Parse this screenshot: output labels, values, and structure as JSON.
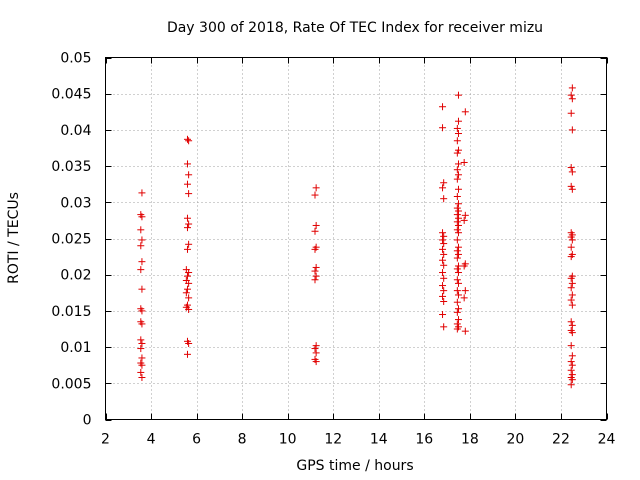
{
  "chart_data": {
    "type": "scatter",
    "title": "Day 300 of 2018, Rate Of TEC Index for receiver mizu",
    "xlabel": "GPS time / hours",
    "ylabel": "ROTI / TECUs",
    "xlim": [
      2,
      24
    ],
    "ylim": [
      0,
      0.05
    ],
    "xticks": [
      2,
      4,
      6,
      8,
      10,
      12,
      14,
      16,
      18,
      20,
      22,
      24
    ],
    "yticks": [
      0,
      0.005,
      0.01,
      0.015,
      0.02,
      0.025,
      0.03,
      0.035,
      0.04,
      0.045,
      0.05
    ],
    "xtick_labels": [
      "2",
      "4",
      "6",
      "8",
      "10",
      "12",
      "14",
      "16",
      "18",
      "20",
      "22",
      "24"
    ],
    "ytick_labels": [
      "0",
      "0.005",
      "0.01",
      "0.015",
      "0.02",
      "0.025",
      "0.03",
      "0.035",
      "0.04",
      "0.045",
      "0.05"
    ],
    "grid": true,
    "marker": "+",
    "color": "#e00000",
    "series": [
      {
        "name": "ROTI",
        "points": [
          [
            3.6,
            0.0313
          ],
          [
            3.55,
            0.0283
          ],
          [
            3.6,
            0.028
          ],
          [
            3.55,
            0.0262
          ],
          [
            3.6,
            0.0248
          ],
          [
            3.55,
            0.024
          ],
          [
            3.6,
            0.0218
          ],
          [
            3.55,
            0.0207
          ],
          [
            3.6,
            0.018
          ],
          [
            3.55,
            0.0153
          ],
          [
            3.6,
            0.015
          ],
          [
            3.55,
            0.0135
          ],
          [
            3.6,
            0.0132
          ],
          [
            3.55,
            0.011
          ],
          [
            3.6,
            0.0105
          ],
          [
            3.55,
            0.0098
          ],
          [
            3.6,
            0.0085
          ],
          [
            3.55,
            0.0078
          ],
          [
            3.6,
            0.0075
          ],
          [
            3.55,
            0.0065
          ],
          [
            3.6,
            0.0058
          ],
          [
            5.6,
            0.0387
          ],
          [
            5.65,
            0.0385
          ],
          [
            5.6,
            0.0353
          ],
          [
            5.65,
            0.0338
          ],
          [
            5.6,
            0.0325
          ],
          [
            5.65,
            0.0312
          ],
          [
            5.6,
            0.0278
          ],
          [
            5.65,
            0.027
          ],
          [
            5.6,
            0.0265
          ],
          [
            5.65,
            0.0242
          ],
          [
            5.6,
            0.0235
          ],
          [
            5.55,
            0.0207
          ],
          [
            5.65,
            0.0203
          ],
          [
            5.6,
            0.0198
          ],
          [
            5.55,
            0.0192
          ],
          [
            5.65,
            0.0188
          ],
          [
            5.6,
            0.018
          ],
          [
            5.55,
            0.0175
          ],
          [
            5.65,
            0.0168
          ],
          [
            5.6,
            0.0158
          ],
          [
            5.55,
            0.0155
          ],
          [
            5.65,
            0.0152
          ],
          [
            5.6,
            0.0108
          ],
          [
            5.65,
            0.0105
          ],
          [
            5.6,
            0.009
          ],
          [
            11.25,
            0.032
          ],
          [
            11.2,
            0.031
          ],
          [
            11.25,
            0.0268
          ],
          [
            11.2,
            0.026
          ],
          [
            11.25,
            0.0238
          ],
          [
            11.2,
            0.0235
          ],
          [
            11.25,
            0.021
          ],
          [
            11.2,
            0.0205
          ],
          [
            11.25,
            0.0198
          ],
          [
            11.2,
            0.0193
          ],
          [
            11.25,
            0.0102
          ],
          [
            11.2,
            0.0098
          ],
          [
            11.25,
            0.0092
          ],
          [
            11.2,
            0.0083
          ],
          [
            11.25,
            0.008
          ],
          [
            16.8,
            0.0432
          ],
          [
            16.8,
            0.0403
          ],
          [
            16.85,
            0.0327
          ],
          [
            16.8,
            0.032
          ],
          [
            16.85,
            0.0305
          ],
          [
            16.8,
            0.0258
          ],
          [
            16.85,
            0.0253
          ],
          [
            16.8,
            0.0248
          ],
          [
            16.85,
            0.0243
          ],
          [
            16.8,
            0.0235
          ],
          [
            16.85,
            0.0228
          ],
          [
            16.8,
            0.022
          ],
          [
            16.85,
            0.0213
          ],
          [
            16.8,
            0.0203
          ],
          [
            16.85,
            0.0195
          ],
          [
            16.8,
            0.0185
          ],
          [
            16.85,
            0.0178
          ],
          [
            16.8,
            0.017
          ],
          [
            16.85,
            0.0163
          ],
          [
            16.8,
            0.0145
          ],
          [
            16.85,
            0.0128
          ],
          [
            17.5,
            0.0448
          ],
          [
            17.5,
            0.0412
          ],
          [
            17.45,
            0.0402
          ],
          [
            17.5,
            0.0395
          ],
          [
            17.45,
            0.0385
          ],
          [
            17.5,
            0.0372
          ],
          [
            17.45,
            0.0368
          ],
          [
            17.5,
            0.0353
          ],
          [
            17.45,
            0.0345
          ],
          [
            17.5,
            0.0338
          ],
          [
            17.45,
            0.0332
          ],
          [
            17.5,
            0.0318
          ],
          [
            17.45,
            0.0308
          ],
          [
            17.5,
            0.0298
          ],
          [
            17.45,
            0.0292
          ],
          [
            17.5,
            0.0288
          ],
          [
            17.45,
            0.0283
          ],
          [
            17.5,
            0.0278
          ],
          [
            17.45,
            0.0273
          ],
          [
            17.5,
            0.0268
          ],
          [
            17.45,
            0.0262
          ],
          [
            17.5,
            0.0258
          ],
          [
            17.45,
            0.0248
          ],
          [
            17.5,
            0.0238
          ],
          [
            17.45,
            0.0233
          ],
          [
            17.5,
            0.0228
          ],
          [
            17.45,
            0.0223
          ],
          [
            17.5,
            0.0212
          ],
          [
            17.45,
            0.0208
          ],
          [
            17.5,
            0.0203
          ],
          [
            17.45,
            0.0193
          ],
          [
            17.5,
            0.0188
          ],
          [
            17.45,
            0.0178
          ],
          [
            17.5,
            0.0172
          ],
          [
            17.45,
            0.0162
          ],
          [
            17.5,
            0.0153
          ],
          [
            17.45,
            0.0148
          ],
          [
            17.5,
            0.0138
          ],
          [
            17.45,
            0.0132
          ],
          [
            17.5,
            0.0128
          ],
          [
            17.45,
            0.0125
          ],
          [
            17.8,
            0.0425
          ],
          [
            17.75,
            0.0355
          ],
          [
            17.8,
            0.0282
          ],
          [
            17.75,
            0.0275
          ],
          [
            17.8,
            0.0215
          ],
          [
            17.75,
            0.0212
          ],
          [
            17.8,
            0.0178
          ],
          [
            17.75,
            0.0168
          ],
          [
            17.8,
            0.0122
          ],
          [
            22.5,
            0.0458
          ],
          [
            22.45,
            0.0448
          ],
          [
            22.5,
            0.0443
          ],
          [
            22.45,
            0.0423
          ],
          [
            22.5,
            0.04
          ],
          [
            22.45,
            0.0348
          ],
          [
            22.5,
            0.0342
          ],
          [
            22.45,
            0.0322
          ],
          [
            22.5,
            0.0318
          ],
          [
            22.45,
            0.0258
          ],
          [
            22.5,
            0.0255
          ],
          [
            22.45,
            0.0252
          ],
          [
            22.5,
            0.0248
          ],
          [
            22.45,
            0.0238
          ],
          [
            22.5,
            0.0228
          ],
          [
            22.45,
            0.0225
          ],
          [
            22.5,
            0.0198
          ],
          [
            22.45,
            0.0195
          ],
          [
            22.5,
            0.0188
          ],
          [
            22.45,
            0.0182
          ],
          [
            22.5,
            0.0172
          ],
          [
            22.45,
            0.0165
          ],
          [
            22.5,
            0.0158
          ],
          [
            22.45,
            0.0135
          ],
          [
            22.5,
            0.013
          ],
          [
            22.45,
            0.0123
          ],
          [
            22.5,
            0.012
          ],
          [
            22.45,
            0.0102
          ],
          [
            22.5,
            0.0088
          ],
          [
            22.45,
            0.008
          ],
          [
            22.5,
            0.0075
          ],
          [
            22.45,
            0.0068
          ],
          [
            22.5,
            0.0062
          ],
          [
            22.45,
            0.0058
          ],
          [
            22.5,
            0.0055
          ],
          [
            22.45,
            0.0048
          ]
        ]
      }
    ]
  }
}
